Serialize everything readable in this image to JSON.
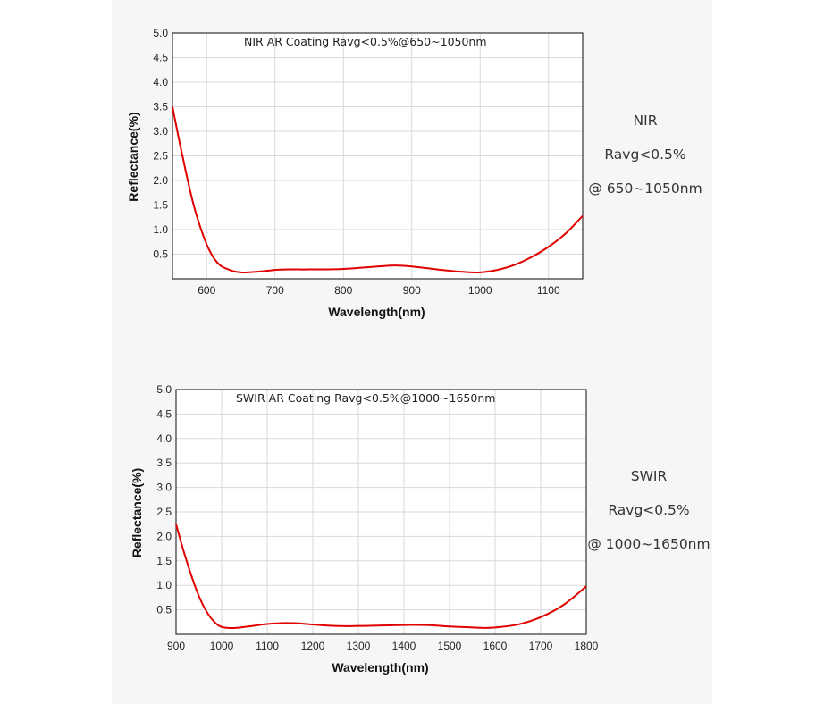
{
  "colors": {
    "curve": "#e00000",
    "grid": "#d9d9d9",
    "frame": "#333333",
    "plot_bg": "#ffffff"
  },
  "chart_data": [
    {
      "type": "line",
      "title": "NIR AR Coating Ravg<0.5%@650~1050nm",
      "xlabel": "Wavelength(nm)",
      "ylabel": "Reflectance(%)",
      "xlim": [
        550,
        1150
      ],
      "ylim": [
        0,
        5
      ],
      "xticks": [
        600,
        700,
        800,
        900,
        1000,
        1100
      ],
      "yticks": [
        0.5,
        1.0,
        1.5,
        2.0,
        2.5,
        3.0,
        3.5,
        4.0,
        4.5,
        5.0
      ],
      "grid": true,
      "series": [
        {
          "x": [
            550,
            560,
            570,
            580,
            590,
            600,
            610,
            620,
            630,
            640,
            650,
            660,
            680,
            700,
            720,
            750,
            800,
            850,
            875,
            900,
            950,
            975,
            1000,
            1025,
            1050,
            1075,
            1100,
            1125,
            1150
          ],
          "y": [
            3.5,
            2.8,
            2.15,
            1.55,
            1.08,
            0.7,
            0.43,
            0.27,
            0.2,
            0.15,
            0.13,
            0.13,
            0.15,
            0.18,
            0.19,
            0.19,
            0.2,
            0.25,
            0.27,
            0.25,
            0.17,
            0.14,
            0.13,
            0.18,
            0.28,
            0.44,
            0.65,
            0.92,
            1.28
          ]
        }
      ]
    },
    {
      "type": "line",
      "title": "SWIR AR Coating Ravg<0.5%@1000~1650nm",
      "xlabel": "Wavelength(nm)",
      "ylabel": "Reflectance(%)",
      "xlim": [
        900,
        1800
      ],
      "ylim": [
        0,
        5
      ],
      "xticks": [
        900,
        1000,
        1100,
        1200,
        1300,
        1400,
        1500,
        1600,
        1700,
        1800
      ],
      "yticks": [
        0.5,
        1.0,
        1.5,
        2.0,
        2.5,
        3.0,
        3.5,
        4.0,
        4.5,
        5.0
      ],
      "grid": true,
      "series": [
        {
          "x": [
            900,
            915,
            930,
            945,
            960,
            975,
            990,
            1000,
            1015,
            1030,
            1050,
            1075,
            1100,
            1140,
            1175,
            1200,
            1250,
            1300,
            1350,
            1400,
            1450,
            1500,
            1550,
            1575,
            1600,
            1650,
            1700,
            1750,
            1800
          ],
          "y": [
            2.25,
            1.75,
            1.3,
            0.9,
            0.58,
            0.35,
            0.2,
            0.15,
            0.13,
            0.13,
            0.15,
            0.18,
            0.21,
            0.23,
            0.22,
            0.2,
            0.17,
            0.17,
            0.18,
            0.19,
            0.19,
            0.16,
            0.14,
            0.13,
            0.14,
            0.2,
            0.35,
            0.6,
            0.98
          ]
        }
      ]
    }
  ],
  "side_notes": [
    {
      "line1": "NIR",
      "line2": "Ravg<0.5%",
      "line3": "@ 650~1050nm"
    },
    {
      "line1": "SWIR",
      "line2": "Ravg<0.5%",
      "line3": "@ 1000~1650nm"
    }
  ]
}
